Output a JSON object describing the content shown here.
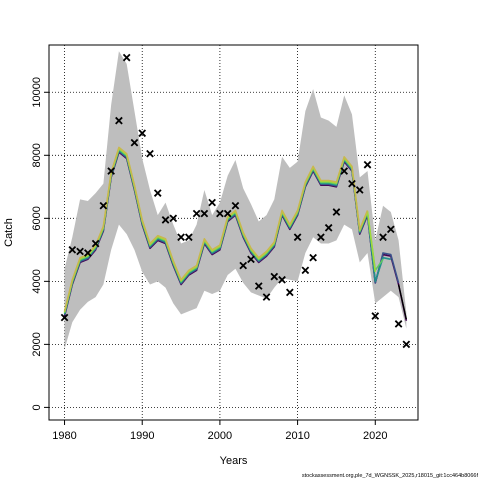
{
  "chart_data": {
    "type": "line",
    "xlabel": "Years",
    "ylabel": "Catch",
    "xlim": [
      1978,
      2025.5
    ],
    "ylim": [
      -400,
      11500
    ],
    "x_ticks": [
      1980,
      1990,
      2000,
      2010,
      2020
    ],
    "y_ticks": [
      0,
      2000,
      4000,
      6000,
      8000,
      10000
    ],
    "grid": true,
    "grid_style": "dotted",
    "footnote": "stockassessment.org,ple_7d_WGNSSK_2025,r18015_git:1cc464b8066f",
    "colors": {
      "band": "#bebebe",
      "observed_marker": "#000000",
      "retro_lines": [
        "#440154",
        "#3b528b",
        "#21908c",
        "#5dc963",
        "#a0da39",
        "#c8b84e"
      ],
      "estimate": "#000000"
    },
    "observed": {
      "marker": "x",
      "x": [
        1980,
        1981,
        1982,
        1983,
        1984,
        1985,
        1986,
        1987,
        1988,
        1989,
        1990,
        1991,
        1992,
        1993,
        1994,
        1995,
        1996,
        1997,
        1998,
        1999,
        2000,
        2001,
        2002,
        2003,
        2004,
        2005,
        2006,
        2007,
        2008,
        2009,
        2010,
        2011,
        2012,
        2013,
        2014,
        2015,
        2016,
        2017,
        2018,
        2019,
        2020,
        2021,
        2022,
        2023,
        2024
      ],
      "y": [
        2850,
        5000,
        4950,
        4900,
        5200,
        6400,
        7500,
        9100,
        11100,
        8400,
        8700,
        8050,
        6800,
        5950,
        6000,
        5400,
        5400,
        6150,
        6150,
        6500,
        6150,
        6150,
        6400,
        4500,
        4700,
        3850,
        3500,
        4150,
        4050,
        3650,
        5400,
        4350,
        4750,
        5400,
        5700,
        6200,
        7500,
        7100,
        6900,
        7700,
        2900,
        5400,
        5650,
        2650,
        2000
      ]
    },
    "band": {
      "x": [
        1980,
        1981,
        1982,
        1983,
        1984,
        1985,
        1986,
        1987,
        1988,
        1989,
        1990,
        1991,
        1992,
        1993,
        1994,
        1995,
        1996,
        1997,
        1998,
        1999,
        2000,
        2001,
        2002,
        2003,
        2004,
        2005,
        2006,
        2007,
        2008,
        2009,
        2010,
        2011,
        2012,
        2013,
        2014,
        2015,
        2016,
        2017,
        2018,
        2019,
        2020,
        2021,
        2022,
        2023,
        2024
      ],
      "lower": [
        1850,
        2700,
        3100,
        3350,
        3500,
        3900,
        5000,
        5800,
        5500,
        5000,
        4300,
        3900,
        4000,
        3800,
        3300,
        2950,
        3050,
        3150,
        3700,
        3600,
        3700,
        4200,
        4400,
        3950,
        3650,
        3550,
        3450,
        3800,
        4100,
        4050,
        4000,
        4900,
        5400,
        5200,
        5200,
        5300,
        5800,
        5650,
        4600,
        4900,
        3300,
        3500,
        3700,
        3500,
        2500
      ],
      "upper": [
        4400,
        5400,
        6600,
        6550,
        6800,
        7100,
        9600,
        11300,
        10900,
        9400,
        7900,
        6900,
        6100,
        6500,
        5800,
        5200,
        5300,
        5800,
        6900,
        6100,
        6500,
        7350,
        7850,
        6950,
        6450,
        5900,
        6100,
        6600,
        7950,
        7600,
        7800,
        9400,
        10100,
        9200,
        9100,
        8900,
        9900,
        9300,
        7300,
        7500,
        5300,
        6400,
        6200,
        5300,
        3000
      ]
    },
    "estimate": {
      "x": [
        1980,
        1981,
        1982,
        1983,
        1984,
        1985,
        1986,
        1987,
        1988,
        1989,
        1990,
        1991,
        1992,
        1993,
        1994,
        1995,
        1996,
        1997,
        1998,
        1999,
        2000,
        2001,
        2002,
        2003,
        2004,
        2005,
        2006,
        2007,
        2008,
        2009,
        2010,
        2011,
        2012,
        2013,
        2014,
        2015,
        2016,
        2017,
        2018,
        2019,
        2020,
        2021,
        2022,
        2023,
        2024
      ],
      "y": [
        2900,
        3900,
        4600,
        4700,
        5000,
        5600,
        7300,
        8100,
        7900,
        6900,
        5800,
        5050,
        5300,
        5200,
        4500,
        3900,
        4200,
        4350,
        5200,
        4850,
        5000,
        5900,
        6100,
        5400,
        4900,
        4600,
        4800,
        5100,
        6100,
        5650,
        6100,
        7000,
        7500,
        7050,
        7050,
        7000,
        7800,
        7500,
        5500,
        6100,
        3950,
        4850,
        4800,
        3900,
        2800
      ]
    },
    "retro_endpoints": {
      "start_year": 2019,
      "series": [
        {
          "x": [
            2019,
            2020,
            2021,
            2022,
            2023,
            2024
          ],
          "y": [
            6100,
            3950,
            4850,
            4800,
            3900,
            2750
          ]
        },
        {
          "x": [
            2019,
            2020,
            2021,
            2022,
            2023
          ],
          "y": [
            6100,
            3950,
            4900,
            4850,
            3950
          ]
        },
        {
          "x": [
            2019,
            2020,
            2021,
            2022
          ],
          "y": [
            6100,
            4000,
            4750,
            4700
          ]
        },
        {
          "x": [
            2019,
            2020,
            2021
          ],
          "y": [
            6150,
            4350,
            4700
          ]
        },
        {
          "x": [
            2019,
            2020
          ],
          "y": [
            6250,
            4300
          ]
        },
        {
          "x": [
            2019
          ],
          "y": [
            6650
          ]
        }
      ]
    }
  }
}
